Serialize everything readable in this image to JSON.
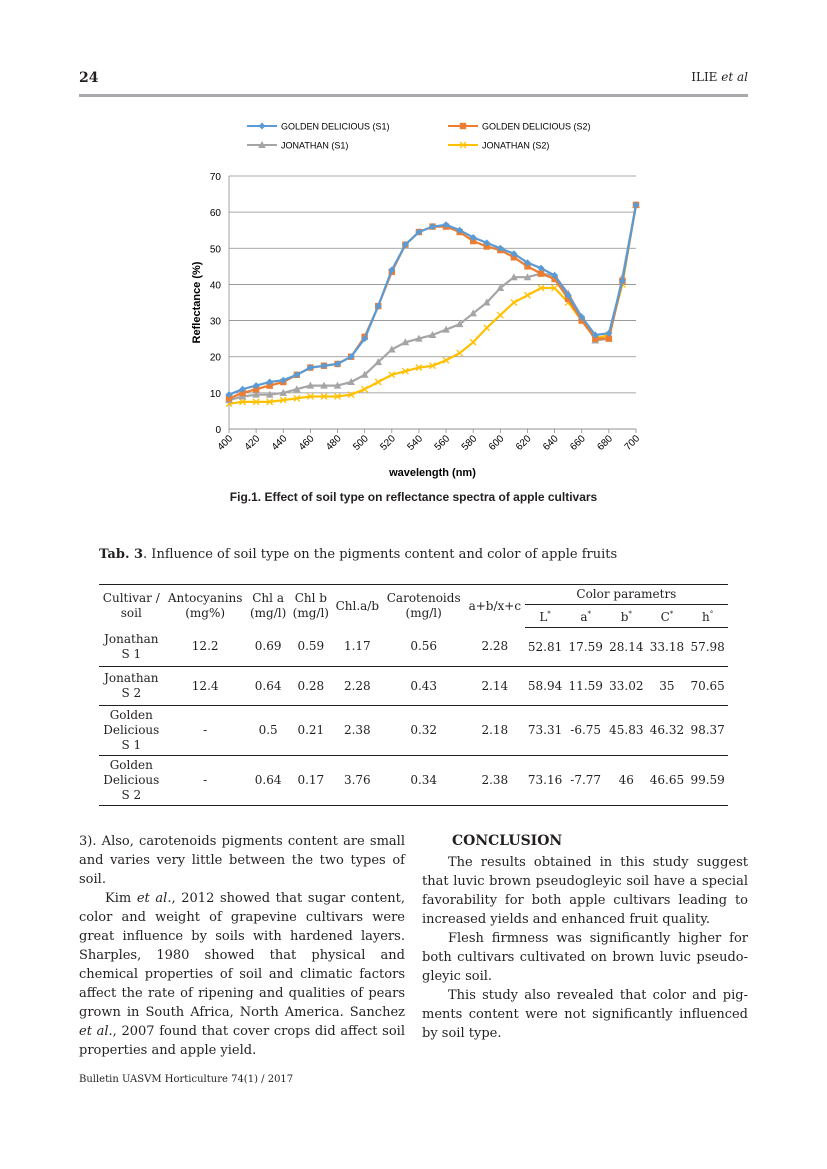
{
  "header": {
    "page_number": "24",
    "running_head": "ILIE et al"
  },
  "figure": {
    "caption": "Fig.1. Effect of soil type on reflectance spectra of apple cultivars"
  },
  "chart_data": {
    "type": "line",
    "xlabel": "wavelength (nm)",
    "ylabel": "Reflectance (%)",
    "xlim": [
      400,
      700
    ],
    "ylim": [
      0,
      70
    ],
    "x_ticks": [
      400,
      420,
      440,
      460,
      480,
      500,
      520,
      540,
      560,
      580,
      600,
      620,
      640,
      660,
      680,
      700
    ],
    "y_ticks": [
      0,
      10,
      20,
      30,
      40,
      50,
      60,
      70
    ],
    "grid": "horizontal",
    "legend_position": "top",
    "x": [
      400,
      410,
      420,
      430,
      440,
      450,
      460,
      470,
      480,
      490,
      500,
      510,
      520,
      530,
      540,
      550,
      560,
      570,
      580,
      590,
      600,
      610,
      620,
      630,
      640,
      650,
      660,
      670,
      680,
      690,
      700
    ],
    "series": [
      {
        "name": "GOLDEN DELICIOUS (S1)",
        "color": "#5b9bd5",
        "marker": "diamond",
        "values": [
          9.5,
          11,
          12,
          13,
          13.5,
          15,
          17,
          17.5,
          18,
          20,
          25,
          34,
          44,
          51,
          54.5,
          56,
          56.5,
          55,
          53,
          51.5,
          50,
          48.5,
          46,
          44.5,
          42.5,
          37,
          31,
          26,
          26.5,
          41,
          62
        ]
      },
      {
        "name": "GOLDEN DELICIOUS (S2)",
        "color": "#ed7d31",
        "marker": "square",
        "values": [
          8.5,
          10,
          11,
          12,
          13,
          15,
          17,
          17.5,
          18,
          20,
          25.5,
          34,
          43.5,
          51,
          54.5,
          56,
          56,
          54.5,
          52,
          50.5,
          49.5,
          47.5,
          45,
          43,
          41.5,
          36,
          30,
          25,
          25,
          41,
          62
        ]
      },
      {
        "name": "JONATHAN (S1)",
        "color": "#a5a5a5",
        "marker": "triangle",
        "values": [
          8,
          9,
          9.5,
          9.5,
          10,
          11,
          12,
          12,
          12,
          13,
          15,
          18.5,
          22,
          24,
          25,
          26,
          27.5,
          29,
          32,
          35,
          39,
          42,
          42,
          43,
          42.5,
          37.5,
          31,
          24.5,
          25,
          42,
          62
        ]
      },
      {
        "name": "JONATHAN (S2)",
        "color": "#ffc000",
        "marker": "cross",
        "values": [
          7,
          7.5,
          7.5,
          7.5,
          8,
          8.5,
          9,
          9,
          9,
          9.5,
          11,
          13,
          15,
          16,
          17,
          17.5,
          19,
          21,
          24,
          28,
          31.5,
          35,
          37,
          39,
          39,
          35,
          30,
          25,
          26,
          40,
          62
        ]
      }
    ]
  },
  "table": {
    "caption_bold": "Tab. 3",
    "caption_rest": ". Influence of soil type on the pigments content  and color of apple fruits",
    "headers": {
      "cultivar": [
        "Cultivar /",
        "soil"
      ],
      "antocyanins": [
        "Antocyanins",
        "(mg%)"
      ],
      "chla": [
        "Chl a",
        "(mg/l)"
      ],
      "chlb": [
        "Chl b",
        "(mg/l)"
      ],
      "chlab": "Chl.a/b",
      "carotenoids": [
        "Carotenoids",
        "(mg/l)"
      ],
      "abxc": "a+b/x+c",
      "color_group": "Color parametrs",
      "L": "L",
      "a": "a",
      "b": "b",
      "C": "C",
      "h": "h",
      "sup": "*",
      "deg": "°"
    },
    "rows": [
      {
        "cultivar": [
          "Jonathan",
          "S 1"
        ],
        "values": [
          "12.2",
          "0.69",
          "0.59",
          "1.17",
          "0.56",
          "2.28",
          "52.81",
          "17.59",
          "28.14",
          "33.18",
          "57.98"
        ]
      },
      {
        "cultivar": [
          "Jonathan",
          "S 2"
        ],
        "values": [
          "12.4",
          "0.64",
          "0.28",
          "2.28",
          "0.43",
          "2.14",
          "58.94",
          "11.59",
          "33.02",
          "35",
          "70.65"
        ]
      },
      {
        "cultivar": [
          "Golden",
          "Delicious",
          "S 1"
        ],
        "values": [
          "-",
          "0.5",
          "0.21",
          "2.38",
          "0.32",
          "2.18",
          "73.31",
          "-6.75",
          "45.83",
          "46.32",
          "98.37"
        ]
      },
      {
        "cultivar": [
          "Golden",
          "Delicious",
          "S 2"
        ],
        "values": [
          "-",
          "0.64",
          "0.17",
          "3.76",
          "0.34",
          "2.38",
          "73.16",
          "-7.77",
          "46",
          "46.65",
          "99.59"
        ]
      }
    ]
  },
  "body": {
    "left_p1": "3). Also, carotenoids pigments content are small and varies very little between the two types of soil.",
    "left_p2_a": "Kim ",
    "left_p2_em1": "et al.",
    "left_p2_b": ", 2012 showed that sugar content, color and weight of grapevine cultivars were great influence by soils with hardened layers. Sharples, 1980 showed that physical and chemical properties of soil and climatic factors affect the rate of ripening and qualities of pears grown in South Africa, North America. Sanchez ",
    "left_p2_em2": "et al.",
    "left_p2_c": ", 2007 found that cover crops did affect soil properties and apple yield.",
    "conclusion_heading": "CONCLUSION",
    "right_p1": "The results obtained in this study suggest that luvic brown pseudogleyic soil have a special favorability for both apple cultivars leading to increased yields and enhanced fruit quality.",
    "right_p2": "Flesh firmness was significantly higher for both cultivars cultivated on brown luvic pseudo-gleyic soil.",
    "right_p3": "This study also revealed that color and pig-ments content were not significantly influenced by soil type."
  },
  "footer": "Bulletin UASVM Horticulture 74(1) / 2017"
}
